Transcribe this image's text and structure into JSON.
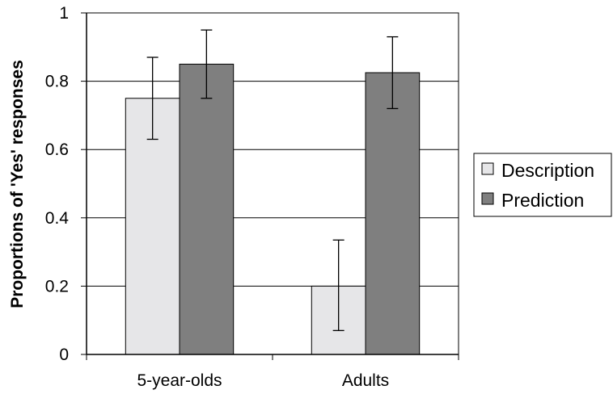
{
  "chart_data": {
    "type": "bar",
    "title": "",
    "xlabel": "",
    "ylabel": "Proportions of 'Yes' responses",
    "categories": [
      "5-year-olds",
      "Adults"
    ],
    "ylim": [
      0,
      1
    ],
    "yticks": [
      0,
      0.2,
      0.4,
      0.6,
      0.8,
      1
    ],
    "ytick_labels": [
      "0",
      "0.2",
      "0.4",
      "0.6",
      "0.8",
      "1"
    ],
    "grid": "horizontal",
    "legend_position": "right",
    "series": [
      {
        "name": "Description",
        "values": [
          0.75,
          0.2
        ],
        "error_low": [
          0.63,
          0.07
        ],
        "error_high": [
          0.87,
          0.335
        ],
        "color": "#e6e6e8"
      },
      {
        "name": "Prediction",
        "values": [
          0.85,
          0.825
        ],
        "error_low": [
          0.75,
          0.72
        ],
        "error_high": [
          0.95,
          0.93
        ],
        "color": "#7f7f7f"
      }
    ]
  }
}
